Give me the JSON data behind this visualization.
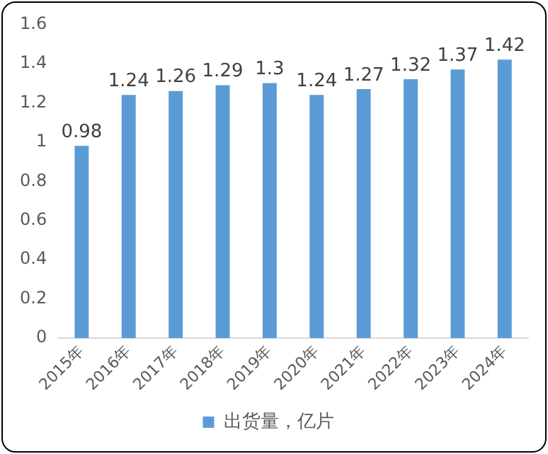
{
  "chart_data": {
    "type": "bar",
    "categories": [
      "2015年",
      "2016年",
      "2017年",
      "2018年",
      "2019年",
      "2020年",
      "2021年",
      "2022年",
      "2023年",
      "2024年"
    ],
    "series": [
      {
        "name": "出货量，亿片",
        "color": "#5b9bd5",
        "values": [
          0.98,
          1.24,
          1.26,
          1.29,
          1.3,
          1.24,
          1.27,
          1.32,
          1.37,
          1.42
        ]
      }
    ],
    "ylim": [
      0,
      1.6
    ],
    "yticks": [
      0,
      0.2,
      0.4,
      0.6,
      0.8,
      1,
      1.2,
      1.4,
      1.6
    ],
    "grid": false,
    "legend": "bottom",
    "data_labels": true
  }
}
